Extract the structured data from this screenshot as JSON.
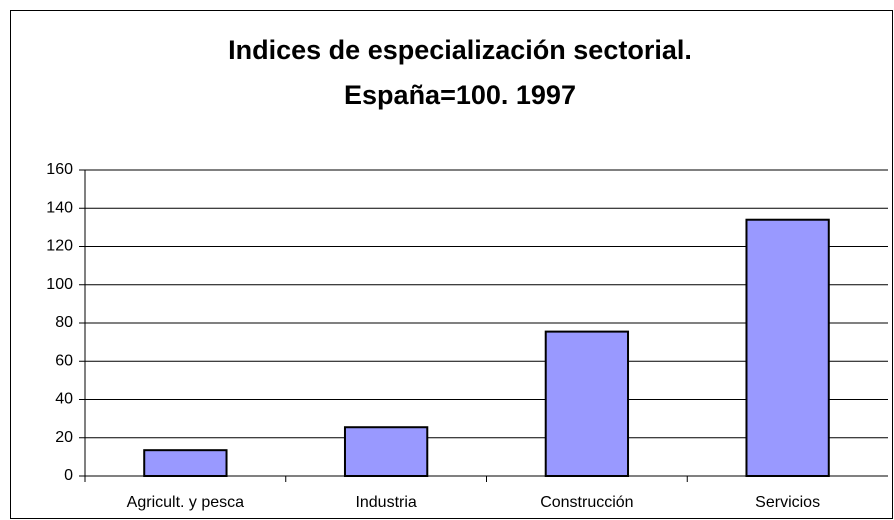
{
  "chart_data": {
    "type": "bar",
    "title": [
      "Indices de especialización sectorial.",
      "España=100. 1997"
    ],
    "categories": [
      "Agricult. y pesca",
      "Industria",
      "Construcción",
      "Servicios"
    ],
    "values": [
      13.5,
      25.5,
      75.5,
      134
    ],
    "color": "#9999ff",
    "ylim": [
      0,
      160
    ],
    "yticks": [
      0,
      20,
      40,
      60,
      80,
      100,
      120,
      140,
      160
    ],
    "grid": true
  }
}
